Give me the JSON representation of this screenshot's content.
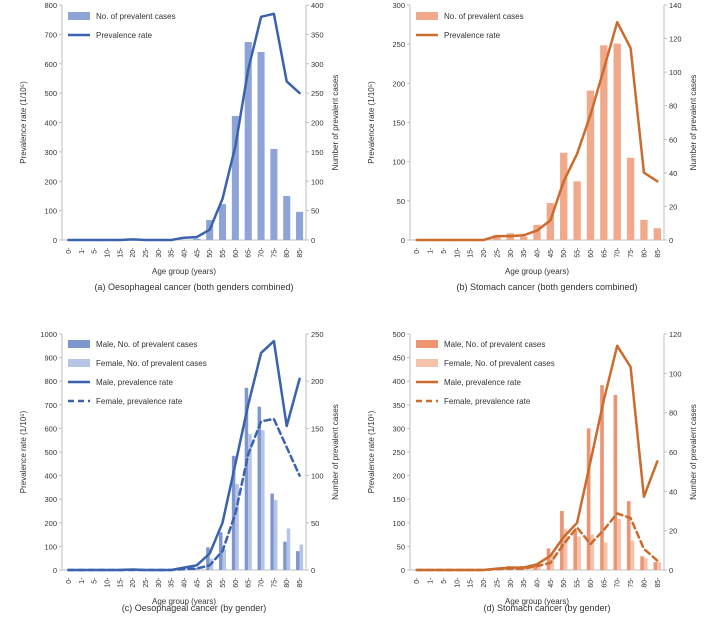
{
  "colors": {
    "blue_bar": "#8ea4d6",
    "blue_bar_male": "#7f97cf",
    "blue_bar_female": "#b6c5e6",
    "blue_line": "#3a62ad",
    "orange_bar": "#f0a98a",
    "orange_bar_male": "#eb9572",
    "orange_bar_female": "#f5c2ab",
    "orange_line": "#cc6b2e",
    "axis": "#bfbfbf",
    "text": "#333333"
  },
  "chart_data": [
    {
      "type": "bar+line",
      "caption": "(a) Oesophageal cancer (both genders combined)",
      "xlabel": "Age group (years)",
      "ylabel_left": "Prevalence rate (1/10⁵)",
      "ylabel_right": "Number of prevalent cases",
      "categories": [
        "0-",
        "1-",
        "5-",
        "10-",
        "15-",
        "20-",
        "25-",
        "30-",
        "35-",
        "40-",
        "45-",
        "50-",
        "55-",
        "60-",
        "65-",
        "70-",
        "75-",
        "80-",
        "85-"
      ],
      "ylim_left": [
        0,
        800
      ],
      "yticks_left": [
        "0",
        "100",
        "200",
        "300",
        "400",
        "500",
        "600",
        "700",
        "800"
      ],
      "ylim_right": [
        0,
        400
      ],
      "yticks_right": [
        "0",
        "50",
        "100",
        "150",
        "200",
        "250",
        "300",
        "350",
        "400"
      ],
      "bar_series": [
        {
          "name": "No. of prevalent cases",
          "color": "#8ea4d6",
          "values": [
            0,
            0,
            0,
            0,
            0,
            0,
            0,
            0,
            0,
            0,
            2,
            34,
            61,
            211,
            337,
            320,
            155,
            75,
            48
          ]
        }
      ],
      "line_series": [
        {
          "name": "Prevalence rate",
          "color": "#3a62ad",
          "dashed": false,
          "values": [
            0,
            0,
            0,
            0,
            0,
            2,
            0,
            0,
            0,
            8,
            10,
            35,
            140,
            320,
            580,
            760,
            770,
            540,
            500
          ]
        }
      ]
    },
    {
      "type": "bar+line",
      "caption": "(b) Stomach cancer (both genders combined)",
      "xlabel": "Age group (years)",
      "ylabel_left": "Prevalence rate (1/10⁵)",
      "ylabel_right": "Number of prevalent cases",
      "categories": [
        "0-",
        "1-",
        "5-",
        "10-",
        "15-",
        "20-",
        "25-",
        "30-",
        "35-",
        "40-",
        "45-",
        "50-",
        "55-",
        "60-",
        "65-",
        "70-",
        "75-",
        "80-",
        "85-"
      ],
      "ylim_left": [
        0,
        300
      ],
      "yticks_left": [
        "0",
        "50",
        "100",
        "150",
        "200",
        "250",
        "300"
      ],
      "ylim_right": [
        0,
        140
      ],
      "yticks_right": [
        "0",
        "20",
        "40",
        "60",
        "80",
        "100",
        "120",
        "140"
      ],
      "bar_series": [
        {
          "name": "No. of prevalent cases",
          "color": "#f0a98a",
          "values": [
            0,
            0,
            0,
            0,
            0,
            0,
            3,
            4,
            2,
            9,
            22,
            52,
            35,
            89,
            116,
            117,
            49,
            12,
            7
          ]
        }
      ],
      "line_series": [
        {
          "name": "Prevalence rate",
          "color": "#cc6b2e",
          "dashed": false,
          "values": [
            0,
            0,
            0,
            0,
            0,
            0,
            5,
            5,
            6,
            12,
            25,
            75,
            110,
            160,
            218,
            278,
            245,
            86,
            75
          ]
        }
      ]
    },
    {
      "type": "bar+line",
      "caption": "(c) Oesophageal cancer (by gender)",
      "xlabel": "Age group (years)",
      "ylabel_left": "Prevalence rate (1/10⁵)",
      "ylabel_right": "Number of prevalent cases",
      "categories": [
        "0-",
        "1-",
        "5-",
        "10-",
        "15-",
        "20-",
        "25-",
        "30-",
        "35-",
        "40-",
        "45-",
        "50-",
        "55-",
        "60-",
        "65-",
        "70-",
        "75-",
        "80-",
        "85-"
      ],
      "ylim_left": [
        0,
        1000
      ],
      "yticks_left": [
        "0",
        "100",
        "200",
        "300",
        "400",
        "500",
        "600",
        "700",
        "800",
        "900",
        "1000"
      ],
      "ylim_right": [
        0,
        250
      ],
      "yticks_right": [
        "0",
        "50",
        "100",
        "150",
        "200",
        "250"
      ],
      "bar_series": [
        {
          "name": "Male, No. of prevalent cases",
          "color": "#7f97cf",
          "values": [
            0,
            0,
            0,
            0,
            0,
            0,
            0,
            0,
            0,
            0,
            2,
            24,
            40,
            121,
            193,
            173,
            81,
            30,
            20
          ]
        },
        {
          "name": "Female, No. of prevalent cases",
          "color": "#b6c5e6",
          "values": [
            0,
            0,
            0,
            0,
            0,
            0,
            0,
            0,
            0,
            0,
            1,
            12,
            22,
            91,
            144,
            148,
            74,
            44,
            27
          ]
        }
      ],
      "line_series": [
        {
          "name": "Male, prevalence rate",
          "color": "#3a62ad",
          "dashed": false,
          "values": [
            0,
            0,
            0,
            0,
            0,
            2,
            0,
            0,
            0,
            10,
            20,
            70,
            200,
            450,
            700,
            920,
            970,
            610,
            810
          ]
        },
        {
          "name": "Female, prevalence rate",
          "color": "#3a62ad",
          "dashed": true,
          "values": [
            0,
            0,
            0,
            0,
            0,
            0,
            0,
            0,
            0,
            4,
            6,
            20,
            80,
            240,
            490,
            630,
            640,
            520,
            400
          ]
        }
      ]
    },
    {
      "type": "bar+line",
      "caption": "(d) Stomach cancer (by gender)",
      "xlabel": "Age group (years)",
      "ylabel_left": "Prevalence rate (1/10⁵)",
      "ylabel_right": "Number of prevalent cases",
      "categories": [
        "0-",
        "1-",
        "5-",
        "10-",
        "15-",
        "20-",
        "25-",
        "30-",
        "35-",
        "40-",
        "45-",
        "50-",
        "55-",
        "60-",
        "65-",
        "70-",
        "75-",
        "80-",
        "85-"
      ],
      "ylim_left": [
        0,
        500
      ],
      "yticks_left": [
        "0",
        "50",
        "100",
        "150",
        "200",
        "250",
        "300",
        "350",
        "400",
        "450",
        "500"
      ],
      "ylim_right": [
        0,
        120
      ],
      "yticks_right": [
        "0",
        "20",
        "40",
        "60",
        "80",
        "100",
        "120"
      ],
      "bar_series": [
        {
          "name": "Male, No. of prevalent cases",
          "color": "#eb9572",
          "values": [
            0,
            0,
            0,
            0,
            0,
            0,
            1,
            2,
            2,
            3,
            11,
            30,
            20,
            72,
            94,
            89,
            35,
            7,
            4
          ]
        },
        {
          "name": "Female, No. of prevalent cases",
          "color": "#f5c2ab",
          "values": [
            0,
            0,
            0,
            0,
            0,
            0,
            1,
            2,
            1,
            3,
            8,
            21,
            17,
            18,
            14,
            26,
            15,
            6,
            4
          ]
        }
      ],
      "line_series": [
        {
          "name": "Male, prevalence rate",
          "color": "#cc6b2e",
          "dashed": false,
          "values": [
            0,
            0,
            0,
            0,
            0,
            0,
            3,
            5,
            5,
            12,
            30,
            70,
            100,
            230,
            360,
            475,
            430,
            155,
            230
          ]
        },
        {
          "name": "Female, prevalence rate",
          "color": "#cc6b2e",
          "dashed": true,
          "values": [
            0,
            0,
            0,
            0,
            0,
            0,
            2,
            3,
            3,
            8,
            15,
            55,
            90,
            55,
            85,
            120,
            110,
            45,
            20
          ]
        }
      ]
    }
  ]
}
